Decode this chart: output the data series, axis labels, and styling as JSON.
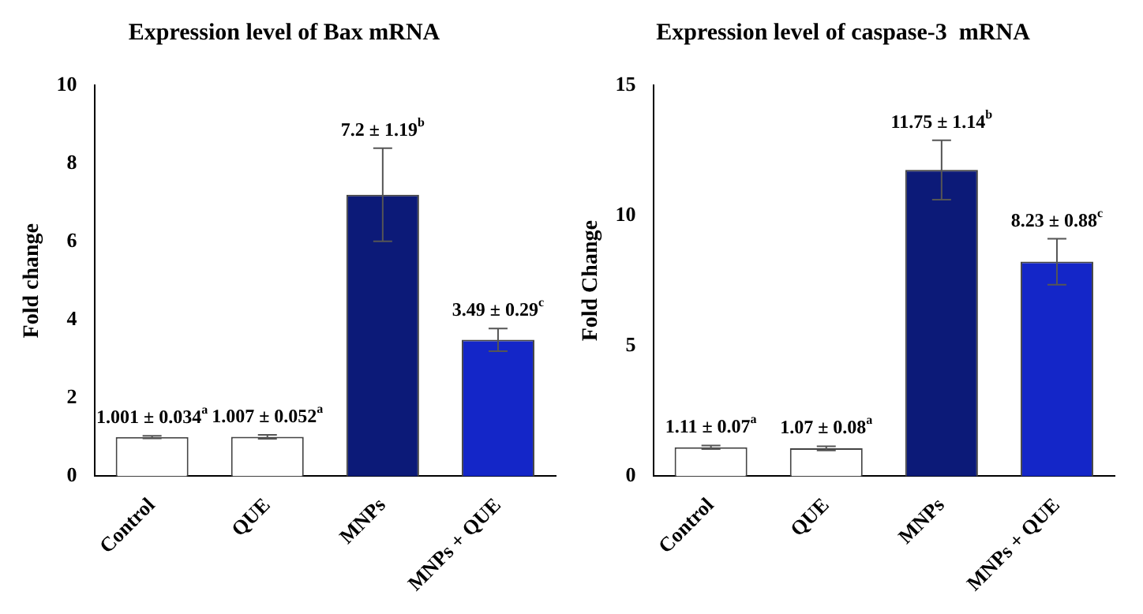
{
  "chart_data": [
    {
      "type": "bar",
      "title": "Expression level of Bax mRNA",
      "ylabel": "Fold change",
      "categories": [
        "Control",
        "QUE",
        "MNPs",
        "MNPs + QUE"
      ],
      "values": [
        1.001,
        1.007,
        7.2,
        3.49
      ],
      "errors": [
        0.034,
        0.052,
        1.19,
        0.29
      ],
      "value_labels": [
        "1.001 ± 0.034$^{a}$",
        "1.007 ± 0.052$^{a}$",
        "7.2 ± 1.19$^{b}$",
        "3.49 ± 0.29$^{c}$"
      ],
      "colors": [
        "#ffffff",
        "#ffffff",
        "#0c1a78",
        "#1426c8"
      ],
      "ylim": [
        0,
        10
      ],
      "yticks": [
        0,
        2,
        4,
        6,
        8,
        10
      ]
    },
    {
      "type": "bar",
      "title": "Expression level of caspase-3  mRNA",
      "ylabel": "Fold Change",
      "categories": [
        "Control",
        "QUE",
        "MNPs",
        "MNPs + QUE"
      ],
      "values": [
        1.11,
        1.07,
        11.75,
        8.23
      ],
      "errors": [
        0.07,
        0.08,
        1.14,
        0.88
      ],
      "value_labels": [
        "1.11 ± 0.07$^{a}$",
        "1.07 ± 0.08$^{a}$",
        "11.75 ± 1.14$^{b}$",
        "8.23 ± 0.88$^{c}$"
      ],
      "colors": [
        "#ffffff",
        "#ffffff",
        "#0c1a78",
        "#1426c8"
      ],
      "ylim": [
        0,
        15
      ],
      "yticks": [
        0,
        5,
        10,
        15
      ]
    }
  ]
}
